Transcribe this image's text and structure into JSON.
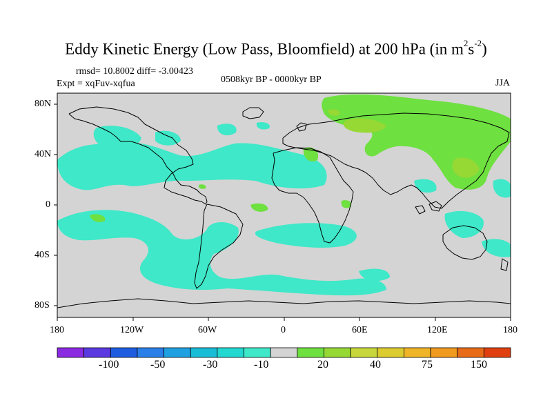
{
  "title": "Eddy Kinetic Energy (Low Pass, Bloomfield) at 200 hPa (in m",
  "title_sup1": "2",
  "title_mid": "s",
  "title_sup2": "-2",
  "title_end": ")",
  "rmsd_line": "rmsd= 10.8002 diff= -3.00423",
  "expt_line": "Expt = xqFuv-xqfua",
  "period": "0508kyr BP - 0000kyr BP",
  "season": "JJA",
  "lat_labels": [
    "80N",
    "40N",
    "0",
    "40S",
    "80S"
  ],
  "lon_labels": [
    "180",
    "120W",
    "60W",
    "0",
    "60E",
    "120E",
    "180"
  ],
  "colorbar": {
    "colors": [
      "#8a2be2",
      "#5a3ae0",
      "#1e5de0",
      "#2a7fe8",
      "#1fa0e0",
      "#19bdd8",
      "#22d8d0",
      "#3ee8c8",
      "#d4d4d4",
      "#6ee040",
      "#96d834",
      "#c8d83c",
      "#dccc30",
      "#f0b428",
      "#f09a20",
      "#e86c18",
      "#e04010"
    ],
    "labels": [
      "-100",
      "-50",
      "-30",
      "-10",
      "20",
      "40",
      "75",
      "150"
    ]
  },
  "legend_colors": {
    "ocean": "#d4d4d4",
    "cyan": "#3ee8c8",
    "green": "#6ee040",
    "yellowgreen": "#96d834"
  }
}
